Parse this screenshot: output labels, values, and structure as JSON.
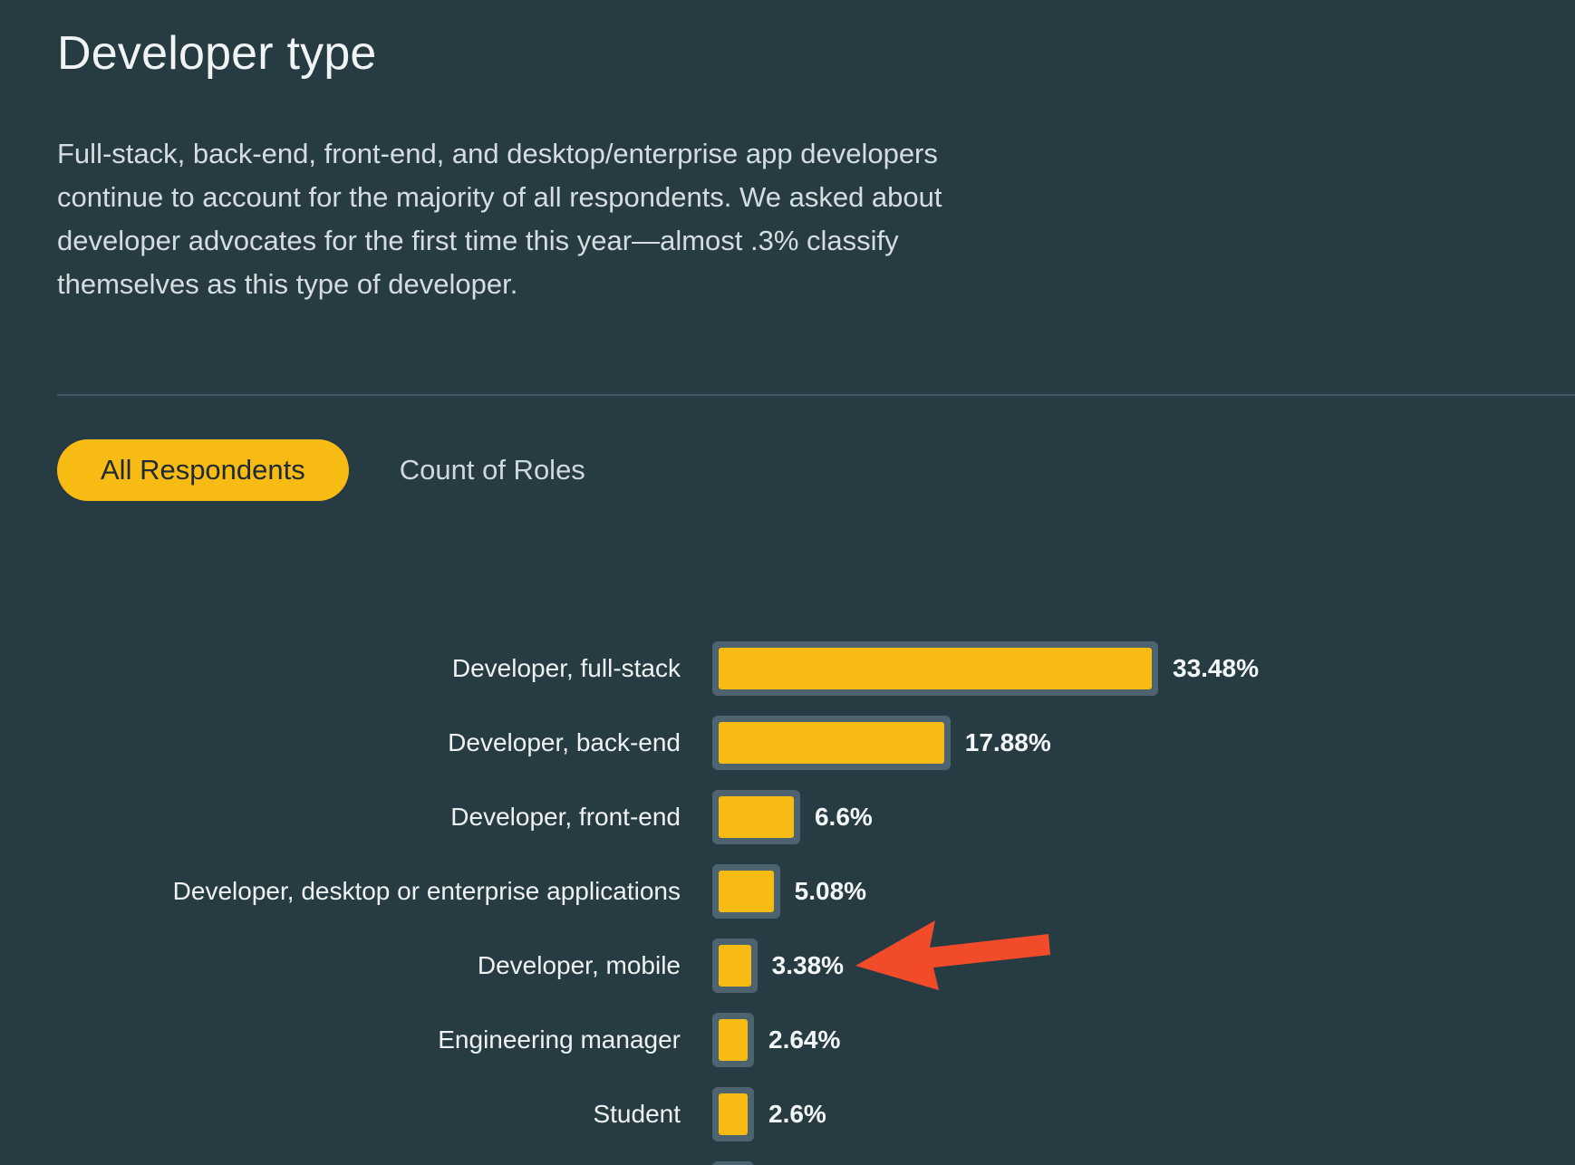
{
  "page": {
    "title": "Developer type",
    "intro": "Full-stack, back-end, front-end, and desktop/enterprise app developers continue to account for the majority of all respondents. We asked about developer advocates for the first time this year—almost .3% classify themselves as this type of developer."
  },
  "tabs": [
    {
      "label": "All Respondents",
      "active": true
    },
    {
      "label": "Count of Roles",
      "active": false
    }
  ],
  "colors": {
    "background": "#273b43",
    "accent": "#f8bb14",
    "annotation": "#f24b2a"
  },
  "chart_data": {
    "type": "bar",
    "orientation": "horizontal",
    "categories": [
      "Developer, full-stack",
      "Developer, back-end",
      "Developer, front-end",
      "Developer, desktop or enterprise applications",
      "Developer, mobile",
      "Engineering manager",
      "Student"
    ],
    "values": [
      33.48,
      17.88,
      6.6,
      5.08,
      3.38,
      2.64,
      2.6
    ],
    "value_labels": [
      "33.48%",
      "17.88%",
      "6.6%",
      "5.08%",
      "3.38%",
      "2.64%",
      "2.6%"
    ],
    "unit": "%",
    "annotation": {
      "type": "arrow",
      "target": "Developer, mobile",
      "color": "#f24b2a"
    }
  }
}
